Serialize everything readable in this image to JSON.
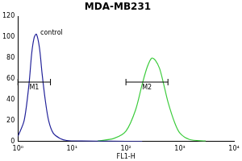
{
  "chart_data": {
    "type": "line",
    "title": "MDA-MB231",
    "x_label": "FL1-H",
    "log": "x",
    "grid": false,
    "xlim": [
      1,
      10000
    ],
    "xticks": [
      {
        "value": 1,
        "label": "10⁰"
      },
      {
        "value": 10,
        "label": "10¹"
      },
      {
        "value": 100,
        "label": "10²"
      },
      {
        "value": 1000,
        "label": "10³"
      },
      {
        "value": 10000,
        "label": "10⁴"
      }
    ],
    "ylim": [
      0,
      120
    ],
    "yticks": [
      0,
      20,
      40,
      60,
      80,
      100,
      120
    ],
    "series": [
      {
        "color": "#23239a",
        "x": [
          1,
          1.3,
          1.6,
          1.8,
          2,
          2.2,
          2.5,
          2.8,
          3.2,
          3.7,
          4.5,
          6,
          8,
          15,
          50,
          200
        ],
        "values": [
          5,
          20,
          55,
          85,
          100,
          103,
          90,
          65,
          40,
          20,
          8,
          3,
          1,
          0.5,
          0.3,
          0.2
        ]
      },
      {
        "color": "#3dcc3d",
        "x": [
          30,
          60,
          100,
          150,
          200,
          250,
          300,
          350,
          420,
          500,
          600,
          800,
          1000,
          1500,
          3000
        ],
        "values": [
          0.5,
          3,
          10,
          30,
          55,
          72,
          80,
          78,
          70,
          55,
          38,
          18,
          8,
          2,
          0.5
        ]
      }
    ],
    "annotations": [
      {
        "text": "control",
        "x": 2.6,
        "y": 104
      }
    ],
    "gates": [
      {
        "label": "M1",
        "range": [
          1,
          4
        ],
        "y": 57
      },
      {
        "label": "M2",
        "range": [
          100,
          600
        ],
        "y": 57
      }
    ]
  }
}
